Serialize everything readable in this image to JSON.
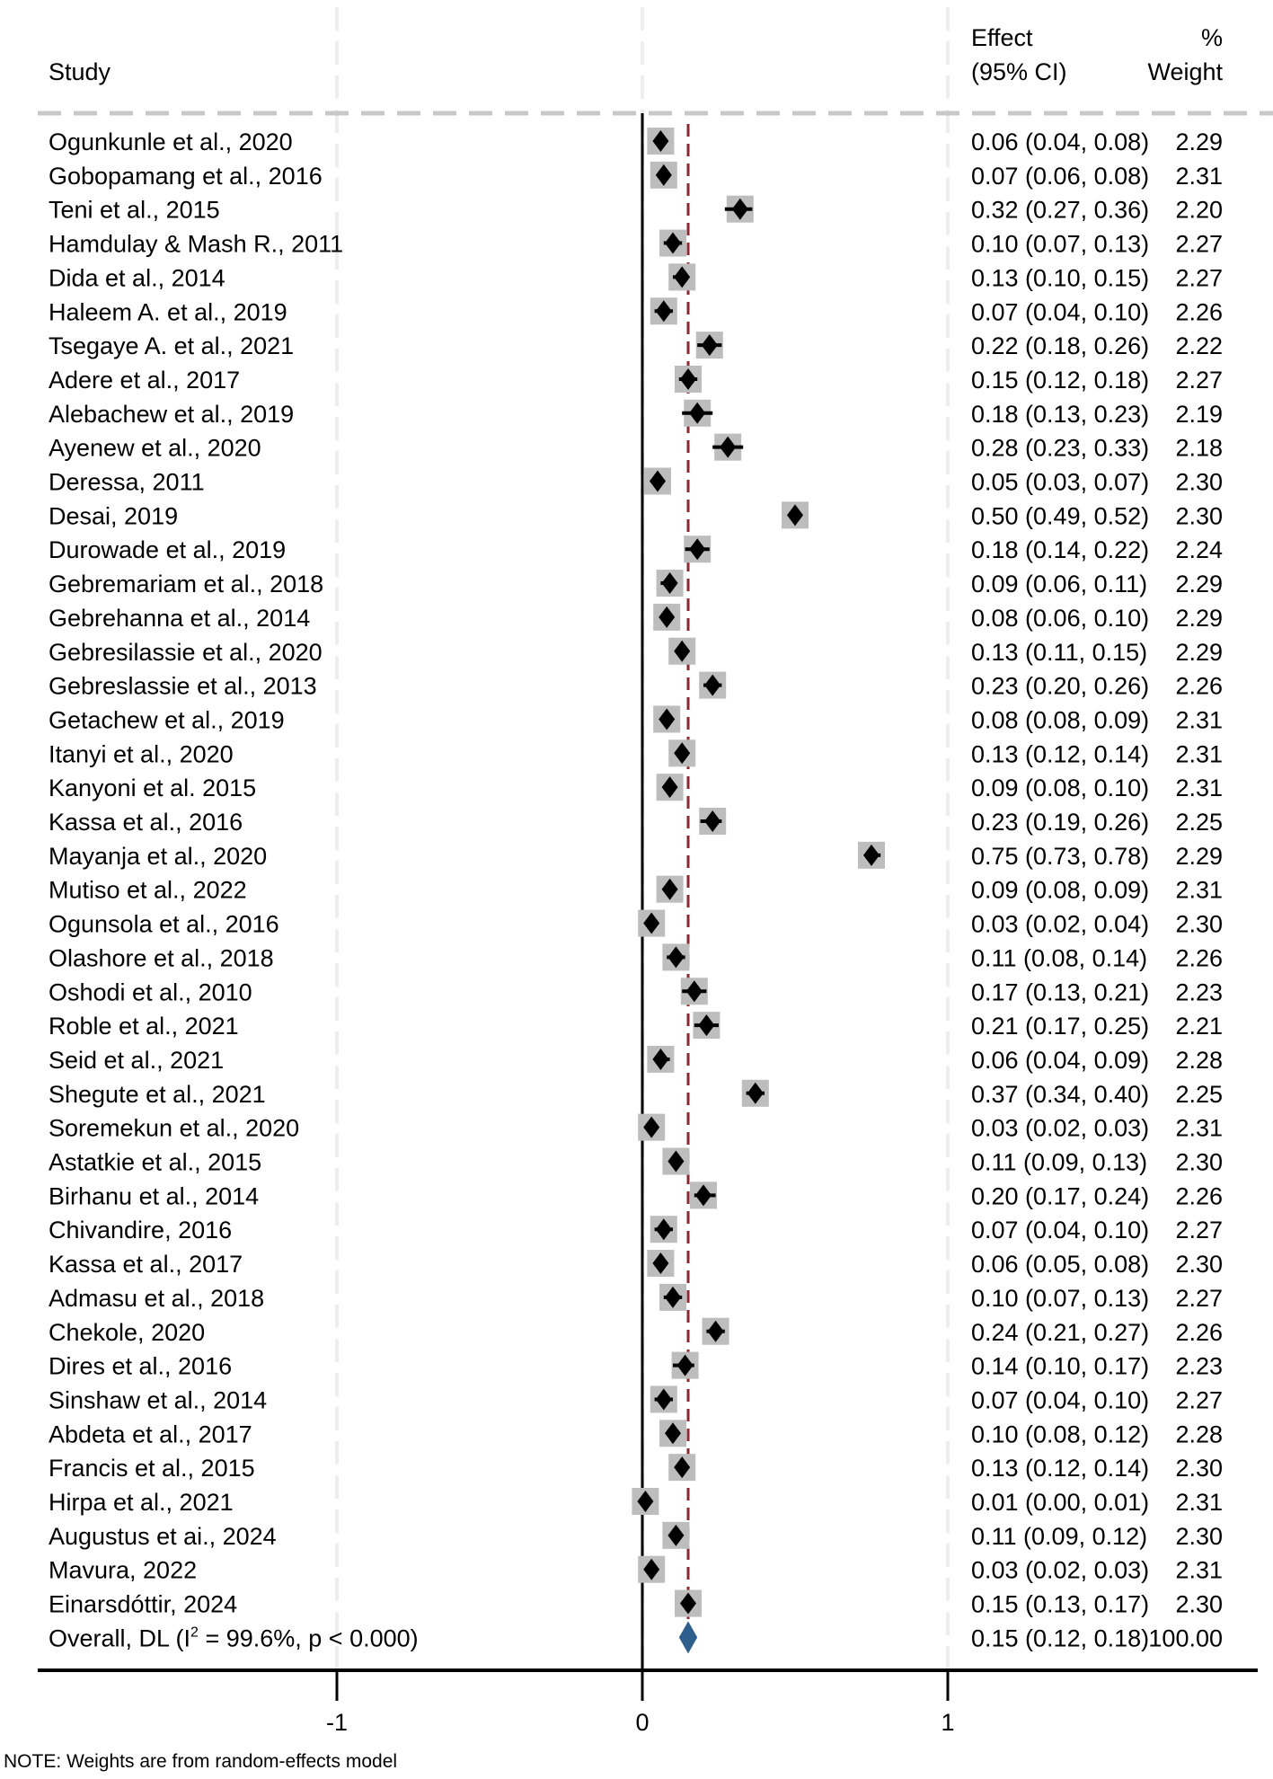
{
  "chart_data": {
    "type": "forest",
    "headers": {
      "study": "Study",
      "effect_line1": "Effect",
      "effect_line2": "(95% CI)",
      "weight_line1": "%",
      "weight_line2": "Weight"
    },
    "xlim": [
      -1.0,
      1.0
    ],
    "xticks": [
      -1,
      0,
      1
    ],
    "xtick_labels": [
      "-1",
      "0",
      "1"
    ],
    "overall_effect": 0.15,
    "colors": {
      "square": "#bdbdbd",
      "point": "#000000",
      "overall_line": "#8b2a35",
      "diamond": "#2e5f8c",
      "grid": "#eeeeee",
      "header_dash": "#c8c8c8"
    },
    "studies": [
      {
        "label": "Ogunkunle et al., 2020",
        "es": 0.06,
        "lo": 0.04,
        "hi": 0.08,
        "ci_text": "0.06 (0.04, 0.08)",
        "weight": "2.29"
      },
      {
        "label": "Gobopamang et al., 2016",
        "es": 0.07,
        "lo": 0.06,
        "hi": 0.08,
        "ci_text": "0.07 (0.06, 0.08)",
        "weight": "2.31"
      },
      {
        "label": "Teni et al., 2015",
        "es": 0.32,
        "lo": 0.27,
        "hi": 0.36,
        "ci_text": "0.32 (0.27, 0.36)",
        "weight": "2.20"
      },
      {
        "label": "Hamdulay & Mash R., 2011",
        "es": 0.1,
        "lo": 0.07,
        "hi": 0.13,
        "ci_text": "0.10 (0.07, 0.13)",
        "weight": "2.27"
      },
      {
        "label": "Dida et al., 2014",
        "es": 0.13,
        "lo": 0.1,
        "hi": 0.15,
        "ci_text": "0.13 (0.10, 0.15)",
        "weight": "2.27"
      },
      {
        "label": "Haleem A. et al., 2019",
        "es": 0.07,
        "lo": 0.04,
        "hi": 0.1,
        "ci_text": "0.07 (0.04, 0.10)",
        "weight": "2.26"
      },
      {
        "label": "Tsegaye A. et al., 2021",
        "es": 0.22,
        "lo": 0.18,
        "hi": 0.26,
        "ci_text": "0.22 (0.18, 0.26)",
        "weight": "2.22"
      },
      {
        "label": "Adere et al., 2017",
        "es": 0.15,
        "lo": 0.12,
        "hi": 0.18,
        "ci_text": "0.15 (0.12, 0.18)",
        "weight": "2.27"
      },
      {
        "label": "Alebachew et al., 2019",
        "es": 0.18,
        "lo": 0.13,
        "hi": 0.23,
        "ci_text": "0.18 (0.13, 0.23)",
        "weight": "2.19"
      },
      {
        "label": "Ayenew et al., 2020",
        "es": 0.28,
        "lo": 0.23,
        "hi": 0.33,
        "ci_text": "0.28 (0.23, 0.33)",
        "weight": "2.18"
      },
      {
        "label": "Deressa, 2011",
        "es": 0.05,
        "lo": 0.03,
        "hi": 0.07,
        "ci_text": "0.05 (0.03, 0.07)",
        "weight": "2.30"
      },
      {
        "label": "Desai, 2019",
        "es": 0.5,
        "lo": 0.49,
        "hi": 0.52,
        "ci_text": "0.50 (0.49, 0.52)",
        "weight": "2.30"
      },
      {
        "label": "Durowade et al., 2019",
        "es": 0.18,
        "lo": 0.14,
        "hi": 0.22,
        "ci_text": "0.18 (0.14, 0.22)",
        "weight": "2.24"
      },
      {
        "label": "Gebremariam et al., 2018",
        "es": 0.09,
        "lo": 0.06,
        "hi": 0.11,
        "ci_text": "0.09 (0.06, 0.11)",
        "weight": "2.29"
      },
      {
        "label": "Gebrehanna et al., 2014",
        "es": 0.08,
        "lo": 0.06,
        "hi": 0.1,
        "ci_text": "0.08 (0.06, 0.10)",
        "weight": "2.29"
      },
      {
        "label": "Gebresilassie et al., 2020",
        "es": 0.13,
        "lo": 0.11,
        "hi": 0.15,
        "ci_text": "0.13 (0.11, 0.15)",
        "weight": "2.29"
      },
      {
        "label": "Gebreslassie et al., 2013",
        "es": 0.23,
        "lo": 0.2,
        "hi": 0.26,
        "ci_text": "0.23 (0.20, 0.26)",
        "weight": "2.26"
      },
      {
        "label": "Getachew et al., 2019",
        "es": 0.08,
        "lo": 0.08,
        "hi": 0.09,
        "ci_text": "0.08 (0.08, 0.09)",
        "weight": "2.31"
      },
      {
        "label": "Itanyi et al., 2020",
        "es": 0.13,
        "lo": 0.12,
        "hi": 0.14,
        "ci_text": "0.13 (0.12, 0.14)",
        "weight": "2.31"
      },
      {
        "label": "Kanyoni et al. 2015",
        "es": 0.09,
        "lo": 0.08,
        "hi": 0.1,
        "ci_text": "0.09 (0.08, 0.10)",
        "weight": "2.31"
      },
      {
        "label": "Kassa et al., 2016",
        "es": 0.23,
        "lo": 0.19,
        "hi": 0.26,
        "ci_text": "0.23 (0.19, 0.26)",
        "weight": "2.25"
      },
      {
        "label": "Mayanja et al., 2020",
        "es": 0.75,
        "lo": 0.73,
        "hi": 0.78,
        "ci_text": "0.75 (0.73, 0.78)",
        "weight": "2.29"
      },
      {
        "label": "Mutiso et al., 2022",
        "es": 0.09,
        "lo": 0.08,
        "hi": 0.09,
        "ci_text": "0.09 (0.08, 0.09)",
        "weight": "2.31"
      },
      {
        "label": "Ogunsola et al., 2016",
        "es": 0.03,
        "lo": 0.02,
        "hi": 0.04,
        "ci_text": "0.03 (0.02, 0.04)",
        "weight": "2.30"
      },
      {
        "label": "Olashore et al., 2018",
        "es": 0.11,
        "lo": 0.08,
        "hi": 0.14,
        "ci_text": "0.11 (0.08, 0.14)",
        "weight": "2.26"
      },
      {
        "label": "Oshodi et al., 2010",
        "es": 0.17,
        "lo": 0.13,
        "hi": 0.21,
        "ci_text": "0.17 (0.13, 0.21)",
        "weight": "2.23"
      },
      {
        "label": "Roble et al., 2021",
        "es": 0.21,
        "lo": 0.17,
        "hi": 0.25,
        "ci_text": "0.21 (0.17, 0.25)",
        "weight": "2.21"
      },
      {
        "label": "Seid et al., 2021",
        "es": 0.06,
        "lo": 0.04,
        "hi": 0.09,
        "ci_text": "0.06 (0.04, 0.09)",
        "weight": "2.28"
      },
      {
        "label": "Shegute et al., 2021",
        "es": 0.37,
        "lo": 0.34,
        "hi": 0.4,
        "ci_text": "0.37 (0.34, 0.40)",
        "weight": "2.25"
      },
      {
        "label": "Soremekun et al., 2020",
        "es": 0.03,
        "lo": 0.02,
        "hi": 0.03,
        "ci_text": "0.03 (0.02, 0.03)",
        "weight": "2.31"
      },
      {
        "label": "Astatkie et al., 2015",
        "es": 0.11,
        "lo": 0.09,
        "hi": 0.13,
        "ci_text": "0.11 (0.09, 0.13)",
        "weight": "2.30"
      },
      {
        "label": "Birhanu et al., 2014",
        "es": 0.2,
        "lo": 0.17,
        "hi": 0.24,
        "ci_text": "0.20 (0.17, 0.24)",
        "weight": "2.26"
      },
      {
        "label": "Chivandire, 2016",
        "es": 0.07,
        "lo": 0.04,
        "hi": 0.1,
        "ci_text": "0.07 (0.04, 0.10)",
        "weight": "2.27"
      },
      {
        "label": "Kassa et al., 2017",
        "es": 0.06,
        "lo": 0.05,
        "hi": 0.08,
        "ci_text": "0.06 (0.05, 0.08)",
        "weight": "2.30"
      },
      {
        "label": "Admasu et al., 2018",
        "es": 0.1,
        "lo": 0.07,
        "hi": 0.13,
        "ci_text": "0.10 (0.07, 0.13)",
        "weight": "2.27"
      },
      {
        "label": "Chekole, 2020",
        "es": 0.24,
        "lo": 0.21,
        "hi": 0.27,
        "ci_text": "0.24 (0.21, 0.27)",
        "weight": "2.26"
      },
      {
        "label": "Dires et al., 2016",
        "es": 0.14,
        "lo": 0.1,
        "hi": 0.17,
        "ci_text": "0.14 (0.10, 0.17)",
        "weight": "2.23"
      },
      {
        "label": "Sinshaw et al., 2014",
        "es": 0.07,
        "lo": 0.04,
        "hi": 0.1,
        "ci_text": "0.07 (0.04, 0.10)",
        "weight": "2.27"
      },
      {
        "label": "Abdeta et al., 2017",
        "es": 0.1,
        "lo": 0.08,
        "hi": 0.12,
        "ci_text": "0.10 (0.08, 0.12)",
        "weight": "2.28"
      },
      {
        "label": "Francis et al., 2015",
        "es": 0.13,
        "lo": 0.12,
        "hi": 0.14,
        "ci_text": "0.13 (0.12, 0.14)",
        "weight": "2.30"
      },
      {
        "label": "Hirpa et al., 2021",
        "es": 0.01,
        "lo": 0.0,
        "hi": 0.01,
        "ci_text": "0.01 (0.00, 0.01)",
        "weight": "2.31"
      },
      {
        "label": "Augustus et ai., 2024",
        "es": 0.11,
        "lo": 0.09,
        "hi": 0.12,
        "ci_text": "0.11 (0.09, 0.12)",
        "weight": "2.30"
      },
      {
        "label": "Mavura, 2022",
        "es": 0.03,
        "lo": 0.02,
        "hi": 0.03,
        "ci_text": "0.03 (0.02, 0.03)",
        "weight": "2.31"
      },
      {
        "label": "Einarsdóttir, 2024",
        "es": 0.15,
        "lo": 0.13,
        "hi": 0.17,
        "ci_text": "0.15 (0.13, 0.17)",
        "weight": "2.30"
      }
    ],
    "overall": {
      "label_prefix": "Overall, DL (I",
      "label_sup": "2",
      "label_suffix": " = 99.6%, p < 0.000)",
      "es": 0.15,
      "lo": 0.12,
      "hi": 0.18,
      "ci_text": "0.15 (0.12, 0.18)",
      "weight": "100.00"
    },
    "note": "NOTE: Weights are from random-effects model"
  }
}
